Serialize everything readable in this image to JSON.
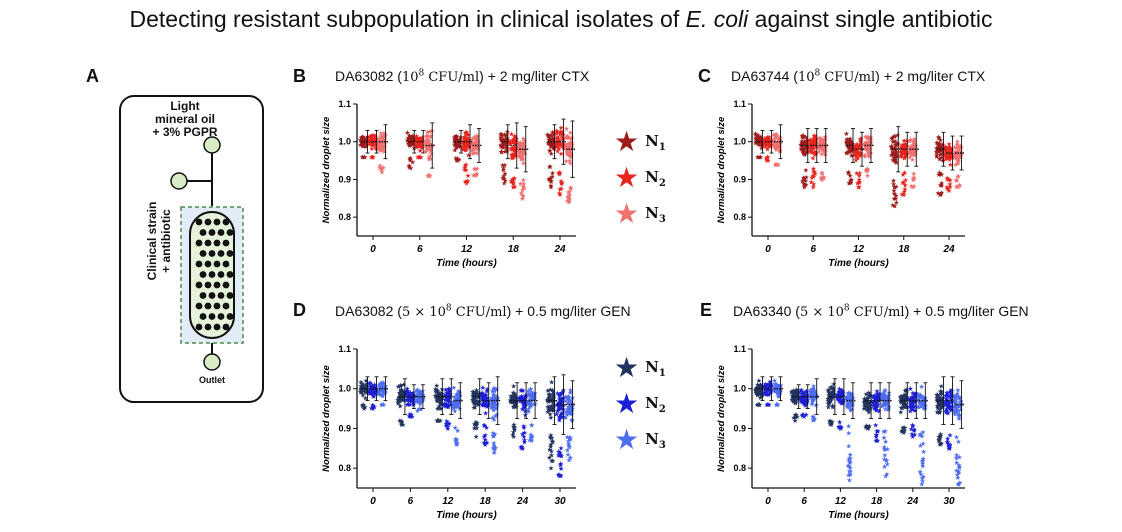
{
  "figure_title": {
    "main": "Detecting resistant subpopulation in clinical isolates of ",
    "species": "E. coli",
    "tail": " against single antibiotic"
  },
  "schematic": {
    "label": "A",
    "oil_label_line1": "Light",
    "oil_label_line2": "mineral oil",
    "oil_label_line3": "+ 3% PGPR",
    "strain_label_line1": "Clinical strain",
    "strain_label_line2": "+ antibiotic",
    "outlet_label": "Outlet"
  },
  "legend_red": {
    "entries": [
      "N",
      "N",
      "N"
    ],
    "subs": [
      "1",
      "2",
      "3"
    ],
    "colors": [
      "#9e1b1b",
      "#e8241f",
      "#f07070"
    ]
  },
  "legend_blue": {
    "entries": [
      "N",
      "N",
      "N"
    ],
    "subs": [
      "1",
      "2",
      "3"
    ],
    "colors": [
      "#22345e",
      "#1d1fd6",
      "#4e6cf0"
    ]
  },
  "chart_data": [
    {
      "panel": "B",
      "type": "scatter",
      "title_pre": "DA63082 (",
      "title_math": "10",
      "title_sup": "8",
      "title_unit": " CFU/ml",
      "title_post": ") + 2 mg/liter CTX",
      "xlabel": "Time (hours)",
      "ylabel": "Normalized droplet size",
      "xticks": [
        "0",
        "6",
        "12",
        "18",
        "24"
      ],
      "yticks": [
        "0.8",
        "0.9",
        "1.0",
        "1.1"
      ],
      "ylim": [
        0.75,
        1.1
      ],
      "series_names": [
        "N1",
        "N2",
        "N3"
      ],
      "timepoints": [
        {
          "x": 0,
          "groups": [
            {
              "mean": 1.0,
              "sd": 0.02,
              "min": 0.96,
              "max": 1.04
            },
            {
              "mean": 1.0,
              "sd": 0.02,
              "min": 0.96,
              "max": 1.04
            },
            {
              "mean": 1.0,
              "sd": 0.03,
              "min": 0.92,
              "max": 1.04
            }
          ]
        },
        {
          "x": 6,
          "groups": [
            {
              "mean": 1.0,
              "sd": 0.02,
              "min": 0.93,
              "max": 1.04
            },
            {
              "mean": 1.0,
              "sd": 0.02,
              "min": 0.96,
              "max": 1.04
            },
            {
              "mean": 0.99,
              "sd": 0.04,
              "min": 0.91,
              "max": 1.03
            }
          ]
        },
        {
          "x": 12,
          "groups": [
            {
              "mean": 1.0,
              "sd": 0.02,
              "min": 0.95,
              "max": 1.04
            },
            {
              "mean": 1.0,
              "sd": 0.03,
              "min": 0.89,
              "max": 1.04
            },
            {
              "mean": 0.99,
              "sd": 0.03,
              "min": 0.91,
              "max": 1.04
            }
          ]
        },
        {
          "x": 18,
          "groups": [
            {
              "mean": 1.0,
              "sd": 0.03,
              "min": 0.89,
              "max": 1.04
            },
            {
              "mean": 0.99,
              "sd": 0.04,
              "min": 0.88,
              "max": 1.04
            },
            {
              "mean": 0.98,
              "sd": 0.04,
              "min": 0.85,
              "max": 1.04
            }
          ]
        },
        {
          "x": 24,
          "groups": [
            {
              "mean": 1.0,
              "sd": 0.03,
              "min": 0.88,
              "max": 1.04
            },
            {
              "mean": 1.0,
              "sd": 0.04,
              "min": 0.86,
              "max": 1.04
            },
            {
              "mean": 0.98,
              "sd": 0.05,
              "min": 0.84,
              "max": 1.04
            }
          ]
        }
      ]
    },
    {
      "panel": "C",
      "type": "scatter",
      "title_pre": "DA63744 (",
      "title_math": "10",
      "title_sup": "8",
      "title_unit": " CFU/ml",
      "title_post": ") + 2 mg/liter CTX",
      "xlabel": "Time (hours)",
      "ylabel": "Normalized droplet size",
      "xticks": [
        "0",
        "6",
        "12",
        "18",
        "24"
      ],
      "yticks": [
        "0.8",
        "0.9",
        "1.0",
        "1.1"
      ],
      "ylim": [
        0.75,
        1.1
      ],
      "series_names": [
        "N1",
        "N2",
        "N3"
      ],
      "timepoints": [
        {
          "x": 0,
          "groups": [
            {
              "mean": 1.0,
              "sd": 0.02,
              "min": 0.96,
              "max": 1.04
            },
            {
              "mean": 1.0,
              "sd": 0.02,
              "min": 0.95,
              "max": 1.04
            },
            {
              "mean": 1.0,
              "sd": 0.03,
              "min": 0.94,
              "max": 1.04
            }
          ]
        },
        {
          "x": 6,
          "groups": [
            {
              "mean": 0.99,
              "sd": 0.03,
              "min": 0.88,
              "max": 1.04
            },
            {
              "mean": 0.99,
              "sd": 0.03,
              "min": 0.88,
              "max": 1.04
            },
            {
              "mean": 0.99,
              "sd": 0.03,
              "min": 0.9,
              "max": 1.03
            }
          ]
        },
        {
          "x": 12,
          "groups": [
            {
              "mean": 0.99,
              "sd": 0.03,
              "min": 0.89,
              "max": 1.04
            },
            {
              "mean": 0.98,
              "sd": 0.03,
              "min": 0.88,
              "max": 1.03
            },
            {
              "mean": 0.99,
              "sd": 0.03,
              "min": 0.91,
              "max": 1.03
            }
          ]
        },
        {
          "x": 18,
          "groups": [
            {
              "mean": 0.98,
              "sd": 0.04,
              "min": 0.83,
              "max": 1.03
            },
            {
              "mean": 0.98,
              "sd": 0.03,
              "min": 0.86,
              "max": 1.03
            },
            {
              "mean": 0.98,
              "sd": 0.03,
              "min": 0.88,
              "max": 1.03
            }
          ]
        },
        {
          "x": 24,
          "groups": [
            {
              "mean": 0.98,
              "sd": 0.03,
              "min": 0.86,
              "max": 1.03
            },
            {
              "mean": 0.97,
              "sd": 0.03,
              "min": 0.87,
              "max": 1.03
            },
            {
              "mean": 0.97,
              "sd": 0.03,
              "min": 0.88,
              "max": 1.03
            }
          ]
        }
      ]
    },
    {
      "panel": "D",
      "type": "scatter",
      "title_pre": "DA63082 (",
      "title_math": "5 × 10",
      "title_sup": "8",
      "title_unit": " CFU/ml",
      "title_post": ") + 0.5 mg/liter GEN",
      "xlabel": "Time (hours)",
      "ylabel": "Normalized droplet size",
      "xticks": [
        "0",
        "6",
        "12",
        "18",
        "24",
        "30"
      ],
      "yticks": [
        "0.8",
        "0.9",
        "1.0",
        "1.1"
      ],
      "ylim": [
        0.75,
        1.1
      ],
      "series_names": [
        "N1",
        "N2",
        "N3"
      ],
      "timepoints": [
        {
          "x": 0,
          "groups": [
            {
              "mean": 1.0,
              "sd": 0.02,
              "min": 0.95,
              "max": 1.05
            },
            {
              "mean": 1.0,
              "sd": 0.02,
              "min": 0.95,
              "max": 1.04
            },
            {
              "mean": 1.0,
              "sd": 0.02,
              "min": 0.96,
              "max": 1.04
            }
          ]
        },
        {
          "x": 6,
          "groups": [
            {
              "mean": 0.98,
              "sd": 0.03,
              "min": 0.91,
              "max": 1.05
            },
            {
              "mean": 0.98,
              "sd": 0.02,
              "min": 0.93,
              "max": 1.03
            },
            {
              "mean": 0.98,
              "sd": 0.02,
              "min": 0.95,
              "max": 1.03
            }
          ]
        },
        {
          "x": 12,
          "groups": [
            {
              "mean": 0.98,
              "sd": 0.03,
              "min": 0.92,
              "max": 1.04
            },
            {
              "mean": 0.98,
              "sd": 0.03,
              "min": 0.9,
              "max": 1.03
            },
            {
              "mean": 0.97,
              "sd": 0.03,
              "min": 0.86,
              "max": 1.03
            }
          ]
        },
        {
          "x": 18,
          "groups": [
            {
              "mean": 0.98,
              "sd": 0.03,
              "min": 0.88,
              "max": 1.05
            },
            {
              "mean": 0.97,
              "sd": 0.03,
              "min": 0.86,
              "max": 1.04
            },
            {
              "mean": 0.97,
              "sd": 0.04,
              "min": 0.84,
              "max": 1.03
            }
          ]
        },
        {
          "x": 24,
          "groups": [
            {
              "mean": 0.97,
              "sd": 0.03,
              "min": 0.88,
              "max": 1.04
            },
            {
              "mean": 0.97,
              "sd": 0.03,
              "min": 0.85,
              "max": 1.03
            },
            {
              "mean": 0.97,
              "sd": 0.03,
              "min": 0.87,
              "max": 1.03
            }
          ]
        },
        {
          "x": 30,
          "groups": [
            {
              "mean": 0.97,
              "sd": 0.04,
              "min": 0.8,
              "max": 1.04
            },
            {
              "mean": 0.96,
              "sd": 0.05,
              "min": 0.78,
              "max": 1.03
            },
            {
              "mean": 0.96,
              "sd": 0.04,
              "min": 0.82,
              "max": 1.02
            }
          ]
        }
      ]
    },
    {
      "panel": "E",
      "type": "scatter",
      "title_pre": "DA63340 (",
      "title_math": "5 × 10",
      "title_sup": "8",
      "title_unit": " CFU/ml",
      "title_post": ") + 0.5 mg/liter GEN",
      "xlabel": "Time (hours)",
      "ylabel": "Normalized droplet size",
      "xticks": [
        "0",
        "6",
        "12",
        "18",
        "24",
        "30"
      ],
      "yticks": [
        "0.8",
        "0.9",
        "1.0",
        "1.1"
      ],
      "ylim": [
        0.75,
        1.1
      ],
      "series_names": [
        "N1",
        "N2",
        "N3"
      ],
      "timepoints": [
        {
          "x": 0,
          "groups": [
            {
              "mean": 1.0,
              "sd": 0.02,
              "min": 0.96,
              "max": 1.05
            },
            {
              "mean": 1.0,
              "sd": 0.02,
              "min": 0.96,
              "max": 1.05
            },
            {
              "mean": 1.0,
              "sd": 0.02,
              "min": 0.96,
              "max": 1.05
            }
          ]
        },
        {
          "x": 6,
          "groups": [
            {
              "mean": 0.98,
              "sd": 0.02,
              "min": 0.92,
              "max": 1.04
            },
            {
              "mean": 0.98,
              "sd": 0.02,
              "min": 0.93,
              "max": 1.04
            },
            {
              "mean": 0.98,
              "sd": 0.03,
              "min": 0.93,
              "max": 1.04
            }
          ]
        },
        {
          "x": 12,
          "groups": [
            {
              "mean": 0.98,
              "sd": 0.03,
              "min": 0.91,
              "max": 1.04
            },
            {
              "mean": 0.98,
              "sd": 0.03,
              "min": 0.9,
              "max": 1.04
            },
            {
              "mean": 0.97,
              "sd": 0.03,
              "min": 0.77,
              "max": 1.04
            }
          ]
        },
        {
          "x": 18,
          "groups": [
            {
              "mean": 0.97,
              "sd": 0.03,
              "min": 0.9,
              "max": 1.03
            },
            {
              "mean": 0.97,
              "sd": 0.03,
              "min": 0.87,
              "max": 1.04
            },
            {
              "mean": 0.97,
              "sd": 0.03,
              "min": 0.78,
              "max": 1.03
            }
          ]
        },
        {
          "x": 24,
          "groups": [
            {
              "mean": 0.97,
              "sd": 0.03,
              "min": 0.89,
              "max": 1.03
            },
            {
              "mean": 0.97,
              "sd": 0.03,
              "min": 0.88,
              "max": 1.03
            },
            {
              "mean": 0.97,
              "sd": 0.03,
              "min": 0.76,
              "max": 1.03
            }
          ]
        },
        {
          "x": 30,
          "groups": [
            {
              "mean": 0.97,
              "sd": 0.04,
              "min": 0.86,
              "max": 1.04
            },
            {
              "mean": 0.97,
              "sd": 0.04,
              "min": 0.85,
              "max": 1.04
            },
            {
              "mean": 0.96,
              "sd": 0.04,
              "min": 0.76,
              "max": 1.04
            }
          ]
        }
      ]
    }
  ]
}
